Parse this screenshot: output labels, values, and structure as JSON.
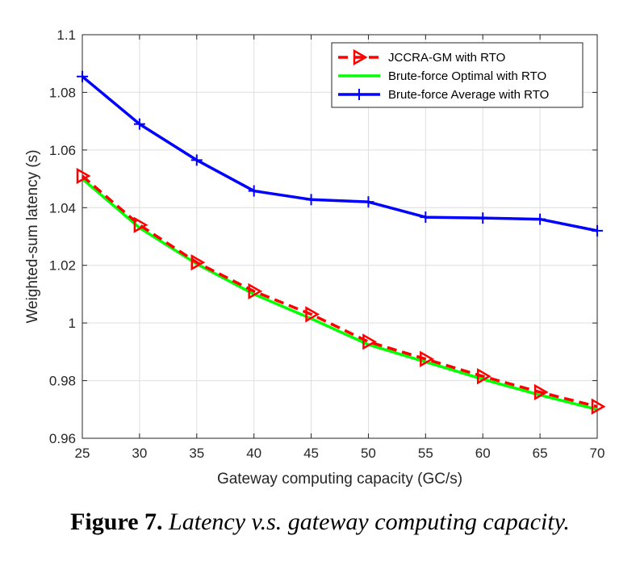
{
  "chart_data": {
    "type": "line",
    "xlabel": "Gateway computing capacity (GC/s)",
    "ylabel": "Weighted-sum latency (s)",
    "xlim": [
      25,
      70
    ],
    "ylim": [
      0.96,
      1.1
    ],
    "x": [
      25,
      30,
      35,
      40,
      45,
      50,
      55,
      60,
      65,
      70
    ],
    "x_tick_labels": [
      "25",
      "30",
      "35",
      "40",
      "45",
      "50",
      "55",
      "60",
      "65",
      "70"
    ],
    "y_ticks": [
      0.96,
      0.98,
      1.0,
      1.02,
      1.04,
      1.06,
      1.08,
      1.1
    ],
    "y_tick_labels": [
      "0.96",
      "0.98",
      "1",
      "1.02",
      "1.04",
      "1.06",
      "1.08",
      "1.1"
    ],
    "grid": true,
    "legend_position": "top-right",
    "series": [
      {
        "name": "JCCRA-GM with RTO",
        "color": "#ff0000",
        "line_style": "dashed",
        "marker": "triangle-right",
        "values": [
          1.051,
          1.034,
          1.021,
          1.011,
          1.003,
          0.9935,
          0.9875,
          0.9815,
          0.976,
          0.971
        ]
      },
      {
        "name": "Brute-force Optimal with RTO",
        "color": "#00ff00",
        "line_style": "solid",
        "marker": "none",
        "values": [
          1.05,
          1.033,
          1.0205,
          1.01,
          1.0015,
          0.9925,
          0.9865,
          0.9805,
          0.975,
          0.97
        ]
      },
      {
        "name": "Brute-force Average with RTO",
        "color": "#0000ff",
        "line_style": "solid",
        "marker": "plus",
        "values": [
          1.0855,
          1.069,
          1.0565,
          1.0458,
          1.0428,
          1.042,
          1.0367,
          1.0364,
          1.036,
          1.032
        ]
      }
    ]
  },
  "caption": {
    "label": "Figure 7.",
    "text": "Latency v.s. gateway computing capacity."
  }
}
